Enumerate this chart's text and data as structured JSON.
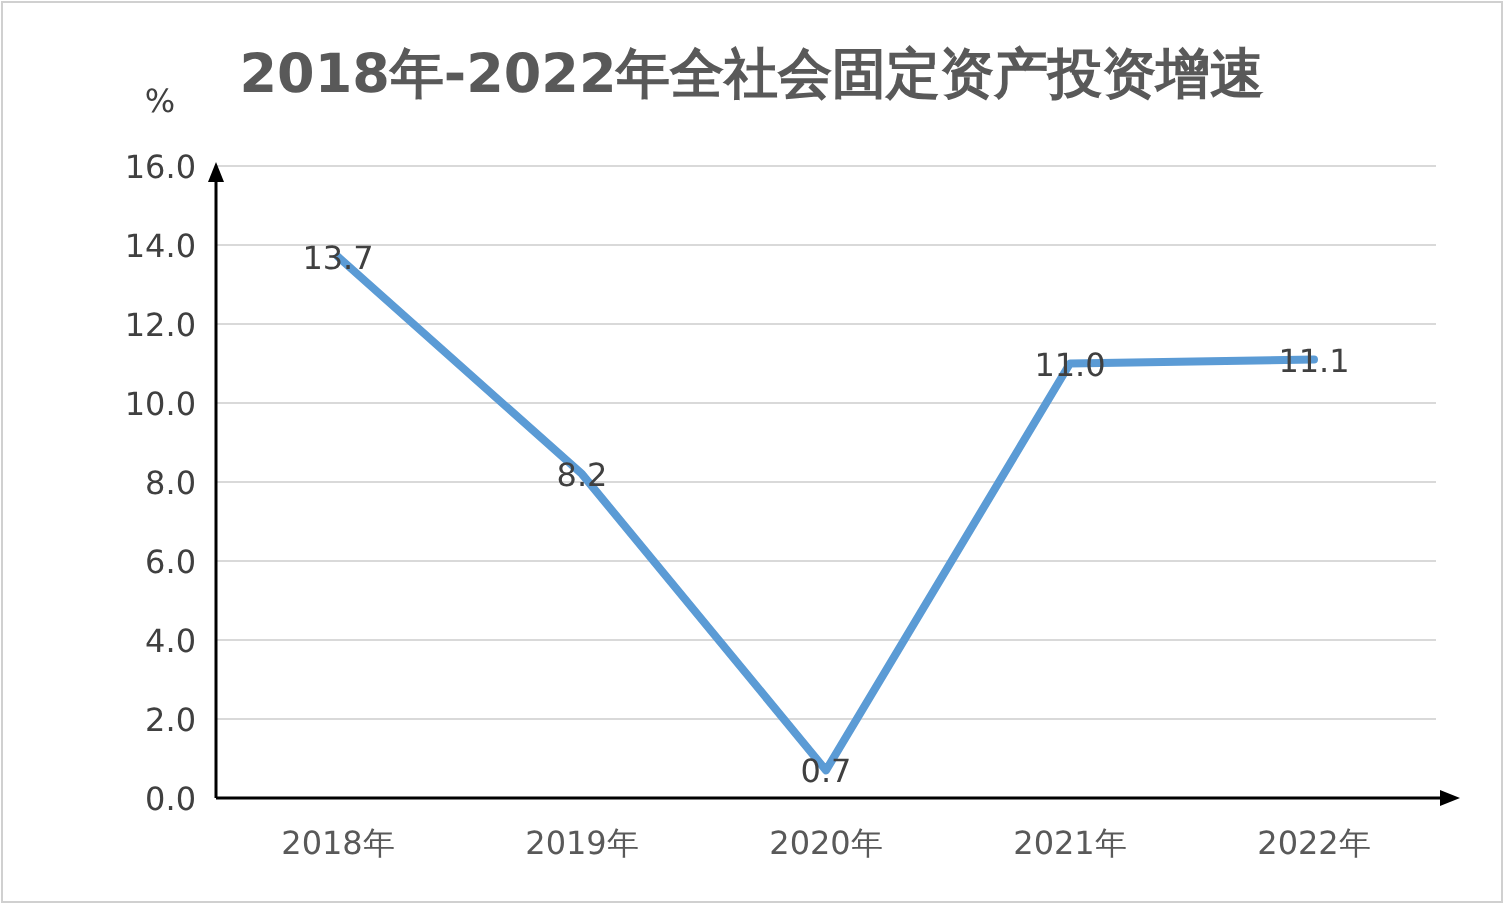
{
  "chart_data": {
    "type": "line",
    "title": "2018年-2022年全社会固定资产投资增速",
    "ylabel": "%",
    "categories": [
      "2018年",
      "2019年",
      "2020年",
      "2021年",
      "2022年"
    ],
    "series": [
      {
        "color": "#5b9bd5",
        "values": [
          13.7,
          8.2,
          0.7,
          11.0,
          11.1
        ],
        "value_labels": [
          "13.7",
          "8.2",
          "0.7",
          "11.0",
          "11.1"
        ]
      }
    ],
    "ylim": [
      0,
      16
    ],
    "yticks": [
      {
        "value": 0,
        "label": "0.0"
      },
      {
        "value": 2,
        "label": "2.0"
      },
      {
        "value": 4,
        "label": "4.0"
      },
      {
        "value": 6,
        "label": "6.0"
      },
      {
        "value": 8,
        "label": "8.0"
      },
      {
        "value": 10,
        "label": "10.0"
      },
      {
        "value": 12,
        "label": "12.0"
      },
      {
        "value": 14,
        "label": "14.0"
      },
      {
        "value": 16,
        "label": "16.0"
      }
    ],
    "grid": "y",
    "marker": "none",
    "line_style": "solid"
  }
}
